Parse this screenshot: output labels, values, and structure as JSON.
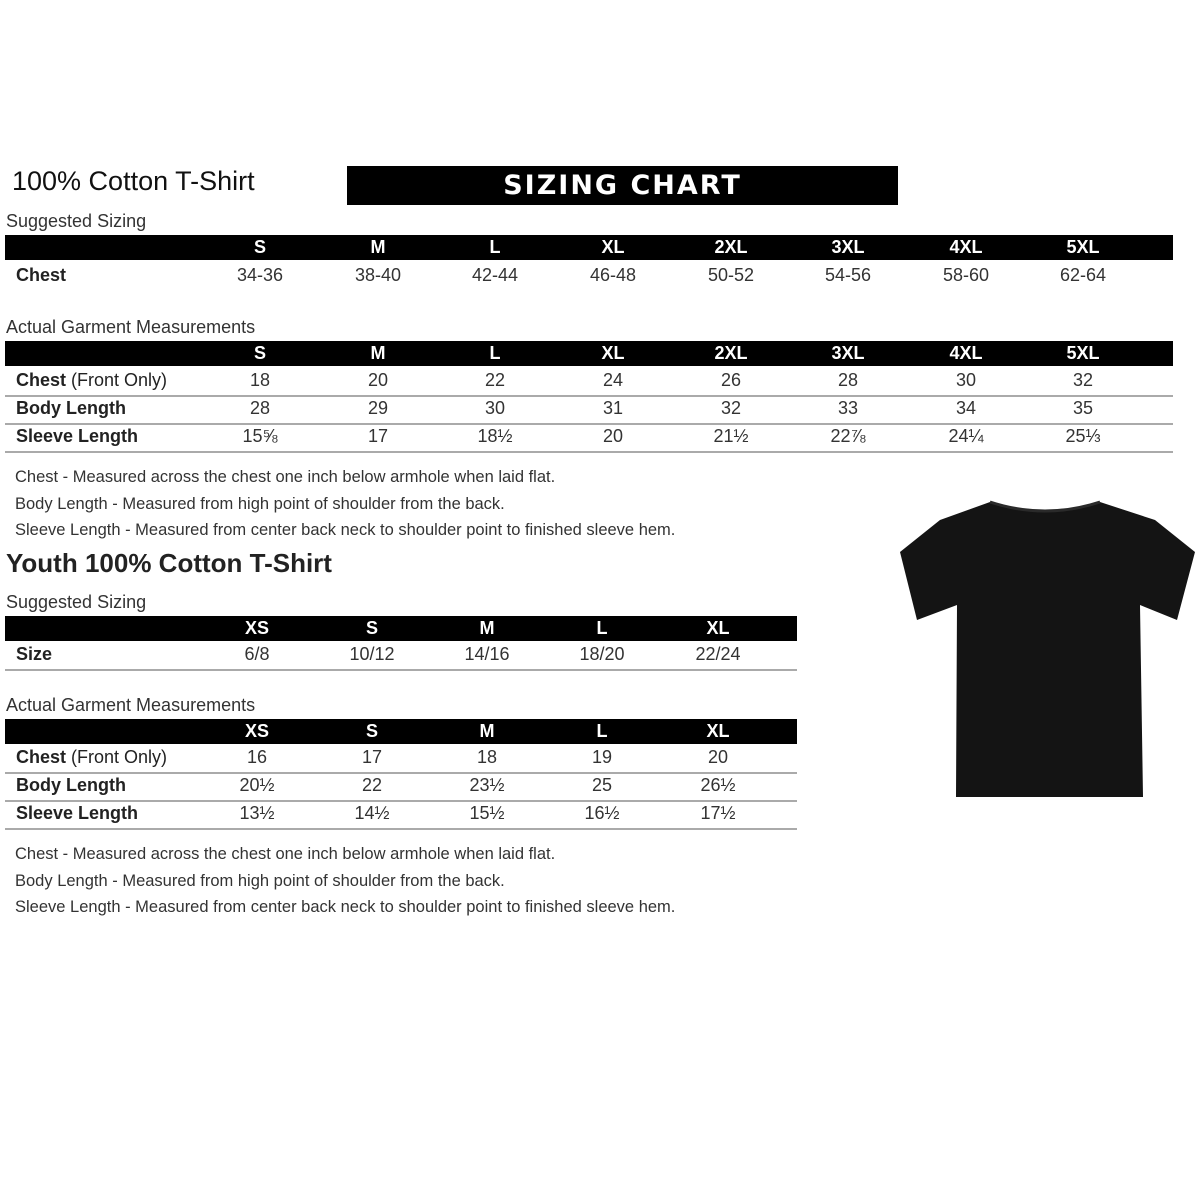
{
  "adult": {
    "title": "100% Cotton T-Shirt",
    "banner": "SIZING CHART",
    "suggested": {
      "label": "Suggested Sizing",
      "sizes": [
        "S",
        "M",
        "L",
        "XL",
        "2XL",
        "3XL",
        "4XL",
        "5XL"
      ],
      "rows": [
        {
          "label": "Chest",
          "values": [
            "34-36",
            "38-40",
            "42-44",
            "46-48",
            "50-52",
            "54-56",
            "58-60",
            "62-64"
          ]
        }
      ]
    },
    "actual": {
      "label": "Actual Garment Measurements",
      "sizes": [
        "S",
        "M",
        "L",
        "XL",
        "2XL",
        "3XL",
        "4XL",
        "5XL"
      ],
      "rows": [
        {
          "label": "Chest",
          "label_note": "(Front Only)",
          "values": [
            "18",
            "20",
            "22",
            "24",
            "26",
            "28",
            "30",
            "32"
          ]
        },
        {
          "label": "Body Length",
          "values": [
            "28",
            "29",
            "30",
            "31",
            "32",
            "33",
            "34",
            "35"
          ]
        },
        {
          "label": "Sleeve Length",
          "values": [
            "15⅝",
            "17",
            "18½",
            "20",
            "21½",
            "22⅞",
            "24¼",
            "25⅓"
          ]
        }
      ]
    },
    "notes": [
      "Chest - Measured across the chest one inch below armhole when laid flat.",
      "Body Length - Measured from high point of shoulder from the back.",
      "Sleeve Length - Measured from center back neck to shoulder point to finished sleeve hem."
    ]
  },
  "youth": {
    "title": "Youth 100% Cotton T-Shirt",
    "suggested": {
      "label": "Suggested Sizing",
      "sizes": [
        "XS",
        "S",
        "M",
        "L",
        "XL"
      ],
      "rows": [
        {
          "label": "Size",
          "values": [
            "6/8",
            "10/12",
            "14/16",
            "18/20",
            "22/24"
          ]
        }
      ]
    },
    "actual": {
      "label": "Actual Garment Measurements",
      "sizes": [
        "XS",
        "S",
        "M",
        "L",
        "XL"
      ],
      "rows": [
        {
          "label": "Chest",
          "label_note": "(Front Only)",
          "values": [
            "16",
            "17",
            "18",
            "19",
            "20"
          ]
        },
        {
          "label": "Body Length",
          "values": [
            "20½",
            "22",
            "23½",
            "25",
            "26½"
          ]
        },
        {
          "label": "Sleeve Length",
          "values": [
            "13½",
            "14½",
            "15½",
            "16½",
            "17½"
          ]
        }
      ]
    },
    "notes": [
      "Chest - Measured across the chest one inch below armhole when laid flat.",
      "Body Length - Measured from high point of shoulder from the back.",
      "Sleeve Length - Measured from center back neck to shoulder point to finished sleeve hem."
    ]
  },
  "image": {
    "icon": "tshirt-icon",
    "color": "#141414"
  }
}
